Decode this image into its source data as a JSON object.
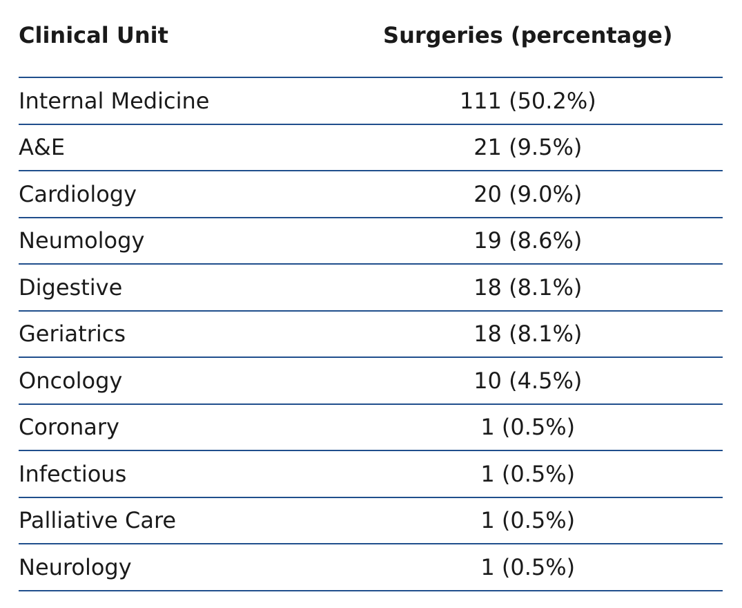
{
  "table": {
    "header": [
      "Clinical Unit",
      "Surgeries (percentage)"
    ],
    "rows": [
      [
        "Internal Medicine",
        "111 (50.2%)"
      ],
      [
        "A&E",
        "21 (9.5%)"
      ],
      [
        "Cardiology",
        "20 (9.0%)"
      ],
      [
        "Neumology",
        "19 (8.6%)"
      ],
      [
        "Digestive",
        "18 (8.1%)"
      ],
      [
        "Geriatrics",
        "18 (8.1%)"
      ],
      [
        "Oncology",
        "10 (4.5%)"
      ],
      [
        "Coronary",
        "1 (0.5%)"
      ],
      [
        "Infectious",
        "1 (0.5%)"
      ],
      [
        "Palliative Care",
        "1 (0.5%)"
      ],
      [
        "Neurology",
        "1 (0.5%)"
      ]
    ]
  }
}
